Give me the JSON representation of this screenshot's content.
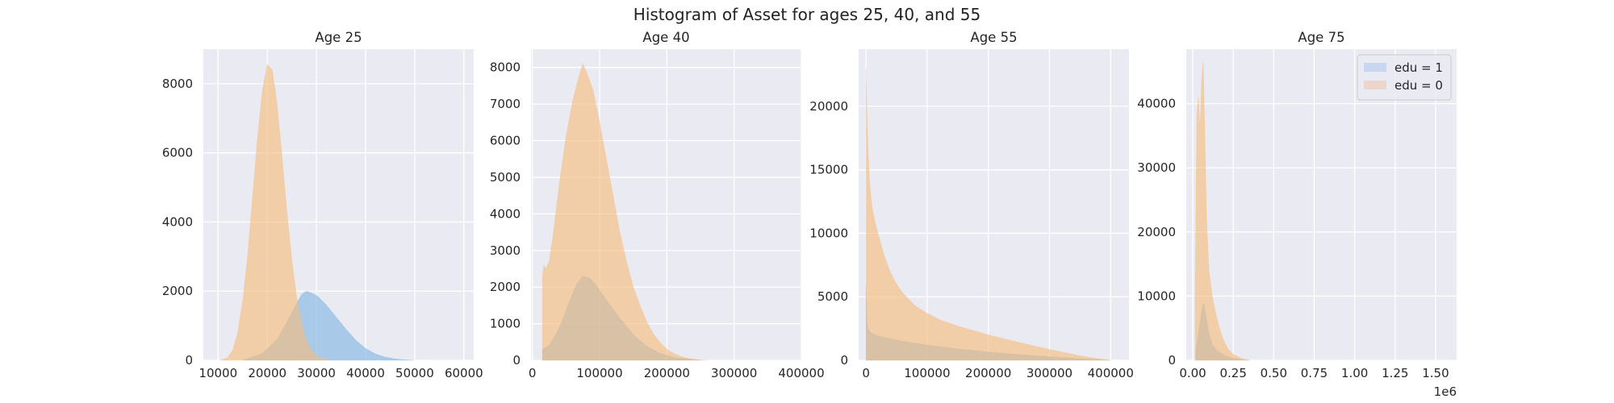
{
  "figure": {
    "title": "Histogram of Asset for ages 25, 40, and 55"
  },
  "chart_data": [
    {
      "type": "histogram",
      "title": "Age 25",
      "xlim": [
        7000,
        62000
      ],
      "ylim": [
        0,
        9000
      ],
      "xticks": [
        10000,
        20000,
        30000,
        40000,
        50000,
        60000
      ],
      "xtick_labels": [
        "10000",
        "20000",
        "30000",
        "40000",
        "50000",
        "60000"
      ],
      "yticks": [
        0,
        2000,
        4000,
        6000,
        8000
      ],
      "ytick_labels": [
        "0",
        "2000",
        "4000",
        "6000",
        "8000"
      ],
      "grid": true,
      "series": [
        {
          "name": "edu = 1",
          "color": "#7fb5e0",
          "x": [
            15000,
            19000,
            22000,
            24000,
            26000,
            27000,
            28000,
            30000,
            32000,
            34000,
            36000,
            38000,
            40000,
            42000,
            44000,
            46000,
            48000,
            50000
          ],
          "y": [
            0,
            200,
            600,
            1100,
            1650,
            1900,
            2000,
            1880,
            1600,
            1250,
            900,
            580,
            340,
            180,
            90,
            40,
            15,
            0
          ]
        },
        {
          "name": "edu = 0",
          "color": "#f5bd7a",
          "x": [
            10500,
            12000,
            13000,
            14000,
            15000,
            16000,
            17000,
            18000,
            19000,
            20000,
            21000,
            22000,
            23000,
            24000,
            25000,
            26000,
            27000,
            28000,
            29000,
            30000,
            31000,
            32000,
            33000
          ],
          "y": [
            0,
            80,
            300,
            800,
            1700,
            3000,
            4700,
            6400,
            7800,
            8550,
            8400,
            7400,
            5900,
            4300,
            2900,
            1800,
            1050,
            550,
            280,
            130,
            60,
            20,
            0
          ]
        }
      ]
    },
    {
      "type": "histogram",
      "title": "Age 40",
      "xlim": [
        -2000,
        400000
      ],
      "ylim": [
        0,
        8500
      ],
      "xticks": [
        0,
        100000,
        200000,
        300000,
        400000
      ],
      "xtick_labels": [
        "0",
        "100000",
        "200000",
        "300000",
        "400000"
      ],
      "yticks": [
        0,
        1000,
        2000,
        3000,
        4000,
        5000,
        6000,
        7000,
        8000
      ],
      "ytick_labels": [
        "0",
        "1000",
        "2000",
        "3000",
        "4000",
        "5000",
        "6000",
        "7000",
        "8000"
      ],
      "grid": true,
      "series": [
        {
          "name": "edu = 1",
          "color": "#7fb5e0",
          "x": [
            15000,
            25000,
            35000,
            45000,
            55000,
            65000,
            75000,
            85000,
            95000,
            110000,
            130000,
            150000,
            170000,
            190000,
            210000,
            230000,
            250000
          ],
          "y": [
            300,
            400,
            700,
            1100,
            1600,
            2050,
            2300,
            2250,
            2050,
            1650,
            1150,
            700,
            380,
            190,
            80,
            30,
            0
          ]
        },
        {
          "name": "edu = 0",
          "color": "#f5bd7a",
          "x": [
            15000,
            17000,
            20000,
            25000,
            30000,
            40000,
            50000,
            60000,
            70000,
            75000,
            80000,
            90000,
            100000,
            110000,
            120000,
            130000,
            140000,
            150000,
            160000,
            170000,
            180000,
            190000,
            200000,
            210000,
            220000,
            230000,
            240000,
            250000,
            260000
          ],
          "y": [
            2300,
            2600,
            2500,
            2700,
            3300,
            4800,
            6100,
            7100,
            7800,
            8100,
            7900,
            7400,
            6500,
            5500,
            4500,
            3500,
            2700,
            2000,
            1500,
            1050,
            720,
            480,
            300,
            190,
            110,
            60,
            30,
            10,
            0
          ]
        }
      ]
    },
    {
      "type": "histogram",
      "title": "Age 55",
      "xlim": [
        -12000,
        430000
      ],
      "ylim": [
        0,
        24500
      ],
      "xticks": [
        0,
        100000,
        200000,
        300000,
        400000
      ],
      "xtick_labels": [
        "0",
        "100000",
        "200000",
        "300000",
        "400000"
      ],
      "yticks": [
        0,
        5000,
        10000,
        15000,
        20000
      ],
      "ytick_labels": [
        "0",
        "5000",
        "10000",
        "15000",
        "20000"
      ],
      "grid": true,
      "series": [
        {
          "name": "edu = 1",
          "color": "#7fb5e0",
          "x": [
            0,
            2000,
            5000,
            10000,
            20000,
            40000,
            60000,
            80000,
            100000,
            150000,
            200000,
            250000,
            300000,
            350000,
            400000
          ],
          "y": [
            6000,
            2800,
            2300,
            2100,
            1900,
            1700,
            1500,
            1350,
            1200,
            900,
            650,
            450,
            280,
            130,
            0
          ]
        },
        {
          "name": "edu = 0",
          "color": "#f5bd7a",
          "x": [
            0,
            2000,
            4000,
            6000,
            8000,
            10000,
            15000,
            20000,
            30000,
            40000,
            50000,
            60000,
            80000,
            100000,
            120000,
            150000,
            200000,
            250000,
            300000,
            350000,
            380000,
            400000
          ],
          "y": [
            23000,
            18500,
            16000,
            14000,
            12800,
            12000,
            10800,
            9900,
            8200,
            6900,
            6000,
            5300,
            4300,
            3700,
            3200,
            2700,
            2000,
            1400,
            850,
            350,
            120,
            0
          ]
        }
      ]
    },
    {
      "type": "histogram",
      "title": "Age 75",
      "xlim": [
        -0.04,
        1.63
      ],
      "ylim": [
        0,
        48500
      ],
      "xticks": [
        0.0,
        0.25,
        0.5,
        0.75,
        1.0,
        1.25,
        1.5
      ],
      "xtick_labels": [
        "0.00",
        "0.25",
        "0.50",
        "0.75",
        "1.00",
        "1.25",
        "1.50"
      ],
      "yticks": [
        0,
        10000,
        20000,
        30000,
        40000
      ],
      "ytick_labels": [
        "0",
        "10000",
        "20000",
        "30000",
        "40000"
      ],
      "x_offset_label": "1e6",
      "grid": true,
      "legend": {
        "position": "upper right",
        "entries": [
          {
            "label": "edu = 1",
            "color": "#c9d6ef"
          },
          {
            "label": "edu = 0",
            "color": "#ebd5cc"
          }
        ]
      },
      "series": [
        {
          "name": "edu = 1",
          "color": "#7fb5e0",
          "x": [
            0.02,
            0.04,
            0.06,
            0.07,
            0.08,
            0.1,
            0.12,
            0.15,
            0.2,
            0.25,
            0.3,
            0.35
          ],
          "y": [
            1500,
            5000,
            8500,
            8800,
            7000,
            4200,
            2500,
            1500,
            700,
            300,
            100,
            0
          ]
        },
        {
          "name": "edu = 0",
          "color": "#f5bd7a",
          "x": [
            0.015,
            0.025,
            0.035,
            0.045,
            0.055,
            0.065,
            0.075,
            0.085,
            0.1,
            0.12,
            0.14,
            0.16,
            0.18,
            0.2,
            0.22,
            0.25,
            0.3,
            0.35
          ],
          "y": [
            10000,
            38000,
            41000,
            36000,
            44000,
            46500,
            34000,
            22000,
            14000,
            10000,
            7500,
            5500,
            3800,
            2600,
            1700,
            900,
            300,
            0
          ]
        }
      ]
    }
  ]
}
